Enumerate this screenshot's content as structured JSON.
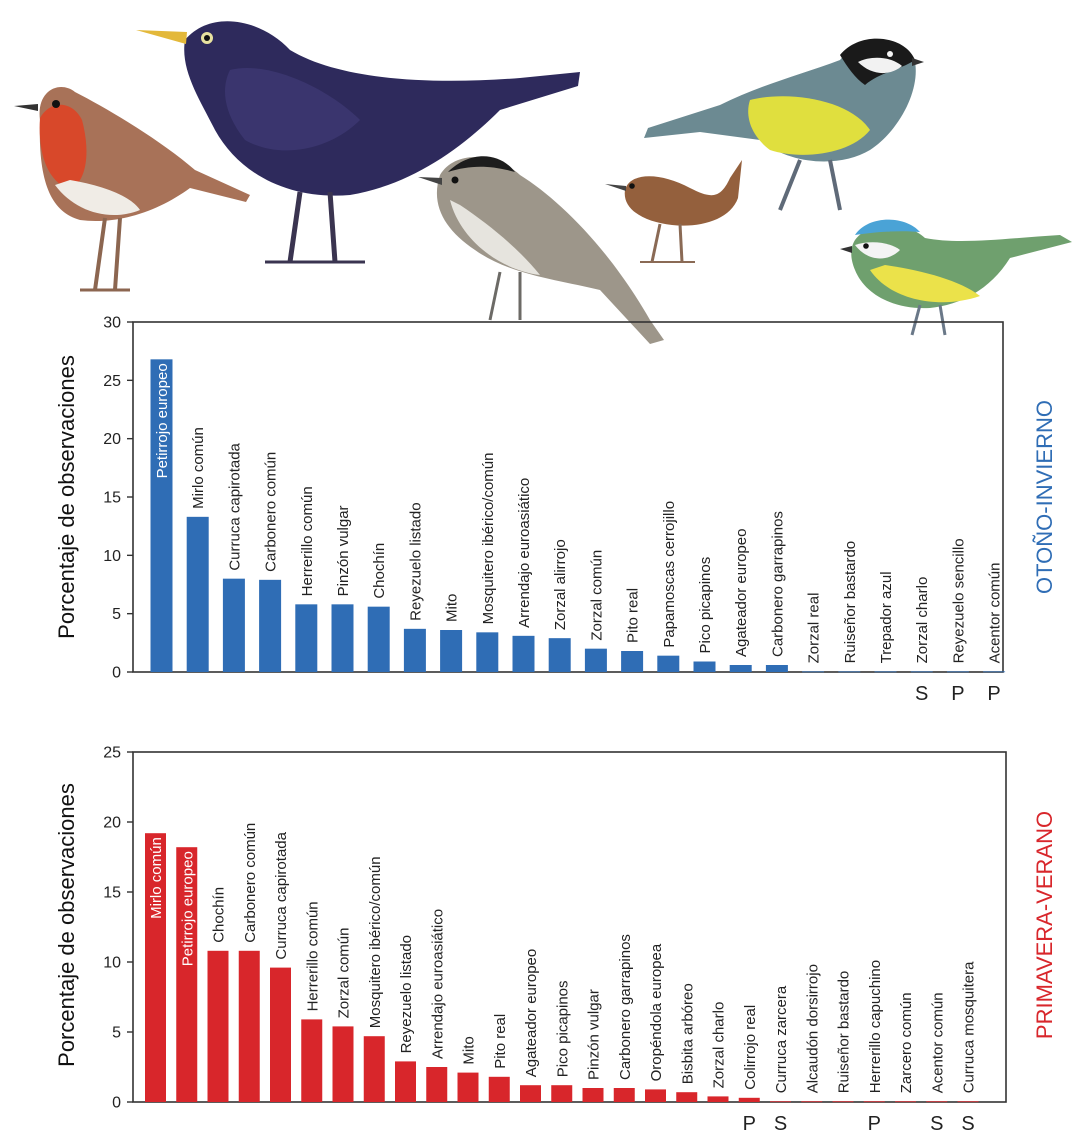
{
  "chart_data": [
    {
      "type": "bar",
      "season_label": "OTOÑO-INVIERNO",
      "ylabel": "Porcentaje de observaciones",
      "ylim": [
        0,
        30
      ],
      "yticks": [
        0,
        5,
        10,
        15,
        20,
        25,
        30
      ],
      "color": "#2f6db5",
      "label_color": "#2f6db5",
      "categories": [
        "Petirrojo europeo",
        "Mirlo común",
        "Curruca capirotada",
        "Carbonero común",
        "Herrerillo común",
        "Pinzón vulgar",
        "Chochín",
        "Reyezuelo listado",
        "Mito",
        "Mosquitero ibérico/común",
        "Arrendajo euroasiático",
        "Zorzal alirrojo",
        "Zorzal común",
        "Pito real",
        "Papamoscas cerrojillo",
        "Pico picapinos",
        "Agateador europeo",
        "Carbonero garrapinos",
        "Zorzal real",
        "Ruiseñor bastardo",
        "Trepador azul",
        "Zorzal charlo",
        "Reyezuelo sencillo",
        "Acentor común"
      ],
      "values": [
        26.8,
        13.3,
        8.0,
        7.9,
        5.8,
        5.8,
        5.6,
        3.7,
        3.6,
        3.4,
        3.1,
        2.9,
        2.0,
        1.8,
        1.4,
        0.9,
        0.6,
        0.6,
        0.05,
        0.05,
        0.05,
        0.05,
        0.05,
        0.05
      ],
      "inside_label_count": 1,
      "markers": [
        "",
        "",
        "",
        "",
        "",
        "",
        "",
        "",
        "",
        "",
        "",
        "",
        "",
        "",
        "",
        "",
        "",
        "",
        "",
        "",
        "",
        "S",
        "P",
        "P"
      ]
    },
    {
      "type": "bar",
      "season_label": "PRIMAVERA-VERANO",
      "ylabel": "Porcentaje de observaciones",
      "ylim": [
        0,
        25
      ],
      "yticks": [
        0,
        5,
        10,
        15,
        20,
        25
      ],
      "color": "#d8262b",
      "label_color": "#d8262b",
      "categories": [
        "Mirlo común",
        "Petirrojo europeo",
        "Chochín",
        "Carbonero común",
        "Curruca capirotada",
        "Herrerillo común",
        "Zorzal común",
        "Mosquitero ibérico/común",
        "Reyezuelo listado",
        "Arrendajo euroasiático",
        "Mito",
        "Pito real",
        "Agateador europeo",
        "Pico picapinos",
        "Pinzón vulgar",
        "Carbonero garrapinos",
        "Oropéndola europea",
        "Bisbita arbóreo",
        "Zorzal charlo",
        "Colirrojo real",
        "Curruca zarcera",
        "Alcaudón dorsirrojo",
        "Ruiseñor bastardo",
        "Herrerillo capuchino",
        "Zarcero común",
        "Acentor común",
        "Curruca mosquitera"
      ],
      "values": [
        19.2,
        18.2,
        10.8,
        10.8,
        9.6,
        5.9,
        5.4,
        4.7,
        2.9,
        2.5,
        2.1,
        1.8,
        1.2,
        1.2,
        1.0,
        1.0,
        0.9,
        0.7,
        0.4,
        0.3,
        0.05,
        0.05,
        0.05,
        0.05,
        0.05,
        0.05,
        0.05
      ],
      "inside_label_count": 2,
      "markers": [
        "",
        "",
        "",
        "",
        "",
        "",
        "",
        "",
        "",
        "",
        "",
        "",
        "",
        "",
        "",
        "",
        "",
        "",
        "",
        "P",
        "S",
        "",
        "",
        "P",
        "",
        "S",
        "S"
      ]
    }
  ],
  "illustrations": [
    "robin-bird-icon",
    "blackbird-icon",
    "blackcap-icon",
    "wren-icon",
    "great-tit-icon",
    "blue-tit-icon"
  ]
}
